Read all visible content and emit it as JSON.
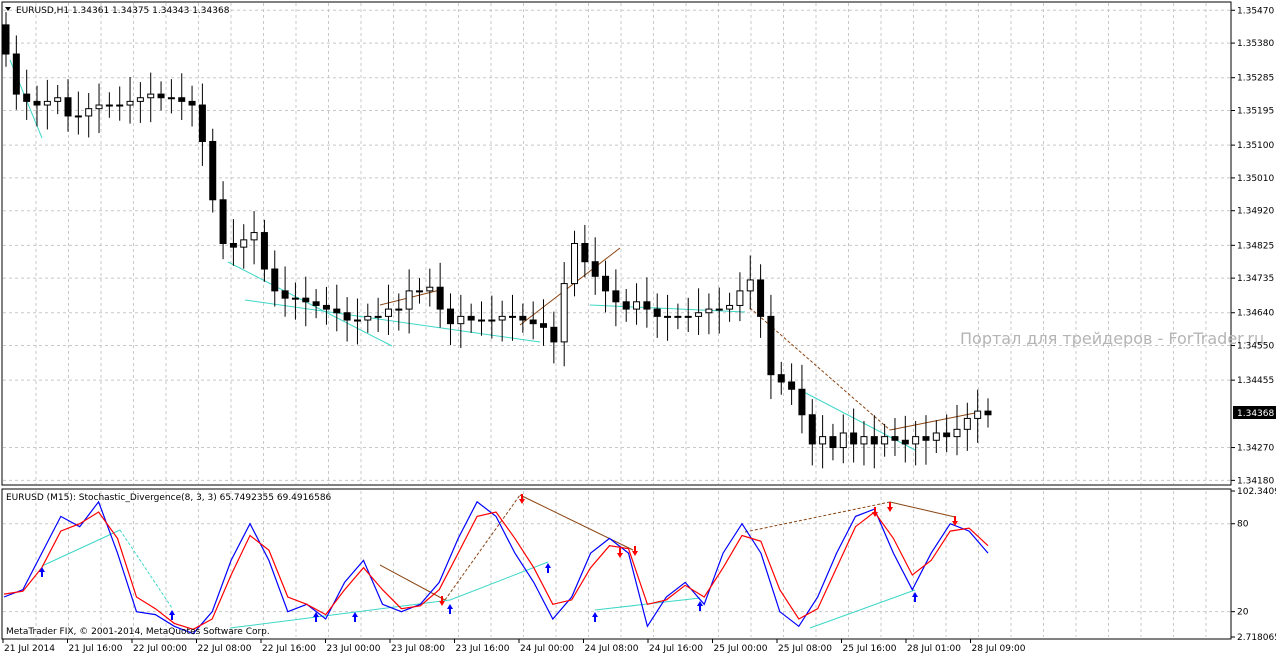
{
  "window": {
    "symbol_info": "EURUSD,H1  1.34361 1.34375 1.34343 1.34368",
    "indicator_info": "EURUSD (M15):  Stochastic_Divergence(8, 3, 3) 65.7492355 69.4916586",
    "copyright": "MetaTrader FIX, © 2001-2014, MetaQuotes Software Corp.",
    "watermark": "Портал для трейдеров - ForTrader.ru"
  },
  "colors": {
    "background": "#ffffff",
    "grid": "#c8c8c8",
    "candle_body": "#000000",
    "divergence_bull": "#3cd7c8",
    "divergence_bear": "#8b4513",
    "stoch_main": "#0000ff",
    "stoch_signal": "#ff0000",
    "arrow_up": "#0000ff",
    "arrow_down": "#ff0000",
    "watermark": "#b4b4b4"
  },
  "chart_data": [
    {
      "type": "candlestick",
      "title": "EURUSD,H1",
      "ohlc_header": {
        "open": 1.34361,
        "high": 1.34375,
        "low": 1.34343,
        "close": 1.34368
      },
      "y_ticks": [
        "1.35470",
        "1.35380",
        "1.35285",
        "1.35195",
        "1.35100",
        "1.35010",
        "1.34920",
        "1.34825",
        "1.34735",
        "1.34640",
        "1.34550",
        "1.34455",
        "1.34270",
        "1.34180"
      ],
      "ylim": [
        1.3417,
        1.3549
      ],
      "current_price_label": "1.34368",
      "closes": [
        1.3535,
        1.3524,
        1.3522,
        1.3521,
        1.3522,
        1.3523,
        1.3518,
        1.3518,
        1.352,
        1.3521,
        1.3521,
        1.3521,
        1.3522,
        1.3523,
        1.3524,
        1.3523,
        1.3523,
        1.3522,
        1.3521,
        1.3511,
        1.3495,
        1.3483,
        1.3482,
        1.3484,
        1.3486,
        1.3476,
        1.347,
        1.3468,
        1.3468,
        1.3467,
        1.3466,
        1.3465,
        1.3464,
        1.3462,
        1.3462,
        1.3463,
        1.3463,
        1.3465,
        1.3465,
        1.347,
        1.347,
        1.3471,
        1.3465,
        1.3461,
        1.3463,
        1.3462,
        1.3462,
        1.3462,
        1.3463,
        1.3463,
        1.3462,
        1.3461,
        1.346,
        1.3456,
        1.3472,
        1.3483,
        1.3478,
        1.3474,
        1.347,
        1.3467,
        1.3465,
        1.3467,
        1.3465,
        1.3463,
        1.3463,
        1.3463,
        1.3463,
        1.3464,
        1.3465,
        1.3465,
        1.3466,
        1.347,
        1.3473,
        1.3463,
        1.3447,
        1.3445,
        1.3443,
        1.3436,
        1.3428,
        1.343,
        1.3427,
        1.3431,
        1.3428,
        1.343,
        1.3428,
        1.343,
        1.3429,
        1.3428,
        1.343,
        1.3429,
        1.3431,
        1.343,
        1.3432,
        1.3435,
        1.3437,
        1.3436
      ]
    },
    {
      "type": "line",
      "title": "Stochastic_Divergence(8, 3, 3)",
      "values_header": {
        "main": 65.7492355,
        "signal": 69.4916586
      },
      "y_ticks": [
        "102.3409",
        "80",
        "20",
        "2.718065"
      ],
      "ylim": [
        2.718065,
        102.3409
      ],
      "series": [
        {
          "name": "main",
          "values": [
            30,
            35,
            60,
            85,
            78,
            95,
            60,
            20,
            18,
            10,
            5,
            20,
            55,
            80,
            55,
            20,
            25,
            15,
            40,
            55,
            25,
            20,
            25,
            40,
            70,
            95,
            85,
            60,
            40,
            15,
            30,
            60,
            70,
            60,
            10,
            30,
            40,
            25,
            60,
            80,
            60,
            20,
            10,
            30,
            60,
            85,
            90,
            60,
            35,
            60,
            80,
            75,
            60
          ]
        },
        {
          "name": "signal",
          "values": [
            32,
            34,
            50,
            75,
            80,
            88,
            70,
            30,
            22,
            12,
            8,
            15,
            45,
            72,
            62,
            30,
            25,
            18,
            35,
            50,
            35,
            22,
            24,
            35,
            60,
            85,
            88,
            70,
            50,
            25,
            28,
            50,
            65,
            63,
            25,
            28,
            38,
            30,
            50,
            72,
            68,
            35,
            15,
            22,
            50,
            78,
            88,
            70,
            45,
            55,
            75,
            77,
            65
          ]
        }
      ]
    }
  ],
  "time_axis": [
    "21 Jul 2014",
    "21 Jul 16:00",
    "22 Jul 00:00",
    "22 Jul 08:00",
    "22 Jul 16:00",
    "23 Jul 00:00",
    "23 Jul 08:00",
    "23 Jul 16:00",
    "24 Jul 00:00",
    "24 Jul 08:00",
    "24 Jul 16:00",
    "25 Jul 00:00",
    "25 Jul 08:00",
    "25 Jul 16:00",
    "28 Jul 01:00",
    "28 Jul 09:00"
  ]
}
